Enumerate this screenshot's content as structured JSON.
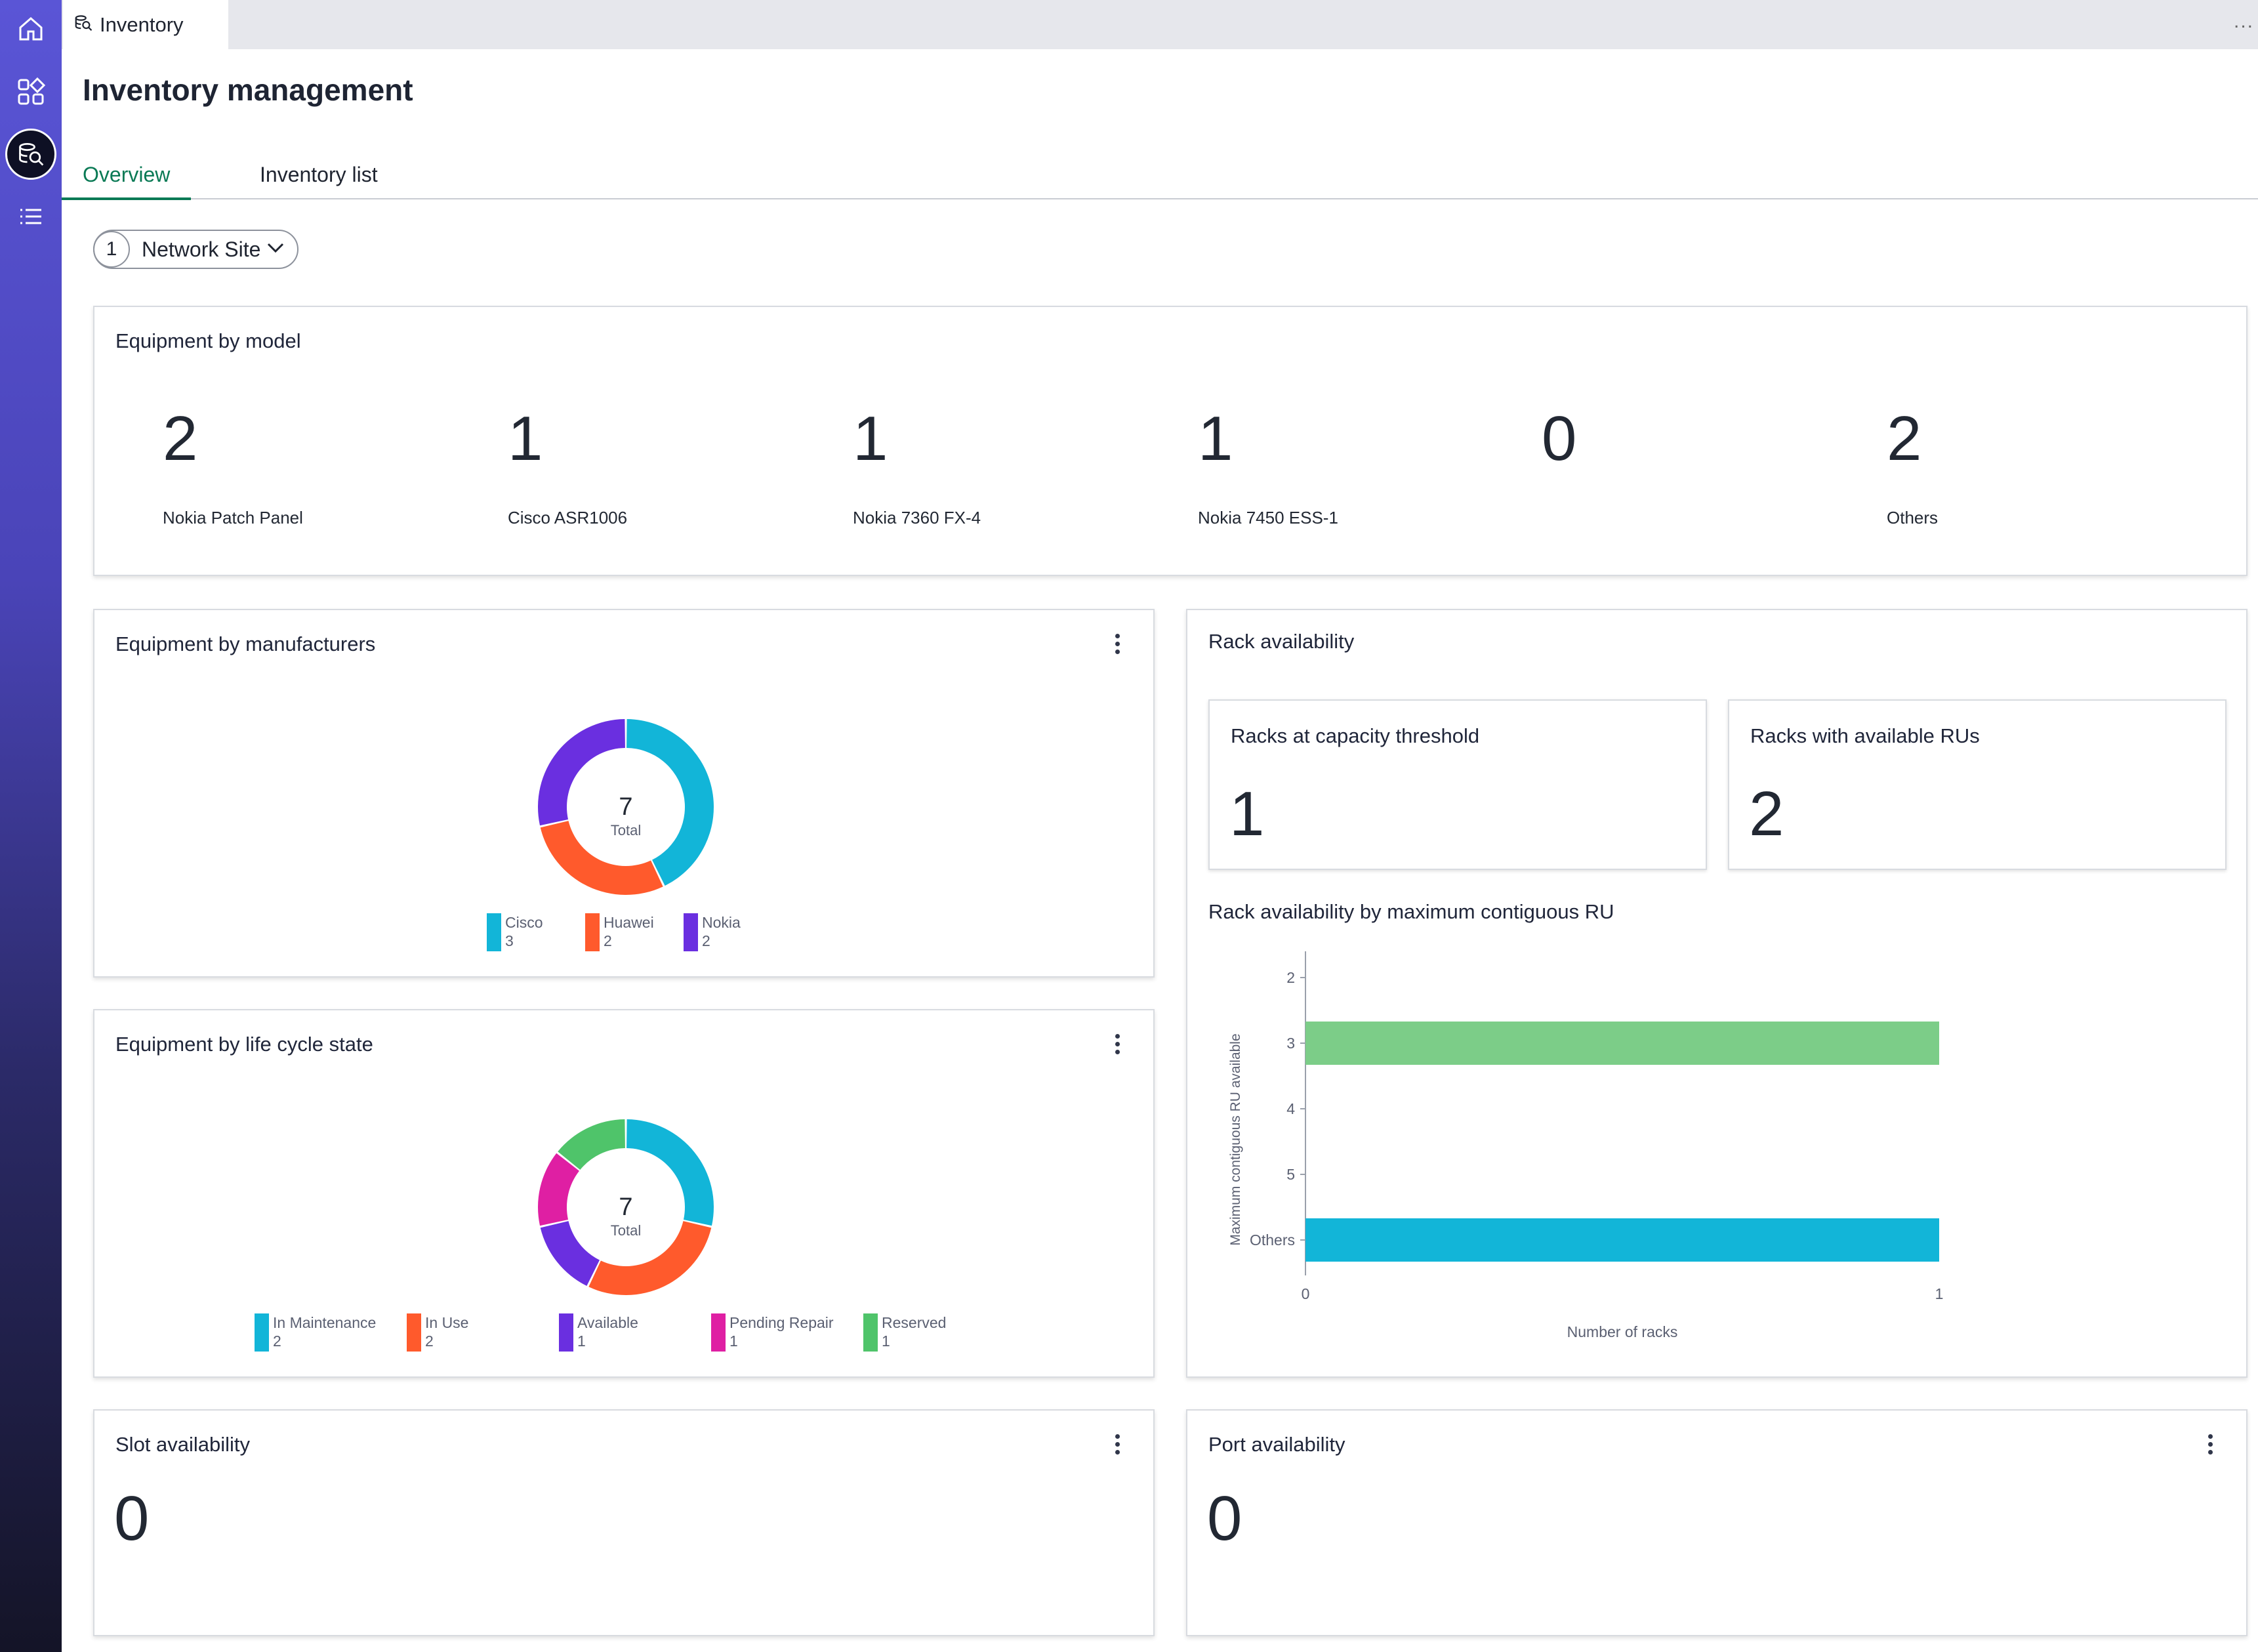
{
  "sidebar": {
    "items": [
      {
        "icon": "home-icon"
      },
      {
        "icon": "apps-icon"
      },
      {
        "icon": "inventory-search-icon",
        "active": true
      },
      {
        "icon": "list-icon"
      }
    ]
  },
  "topbar": {
    "tab_label": "Inventory",
    "tab_icon": "inventory-search-icon",
    "more": "..."
  },
  "header": {
    "title": "Inventory management"
  },
  "tabs": [
    {
      "label": "Overview",
      "active": true
    },
    {
      "label": "Inventory list"
    }
  ],
  "filter": {
    "count": "1",
    "label": "Network Site"
  },
  "equipment_by_model": {
    "title": "Equipment by model",
    "items": [
      {
        "value": "2",
        "label": "Nokia Patch Panel"
      },
      {
        "value": "1",
        "label": "Cisco ASR1006"
      },
      {
        "value": "1",
        "label": "Nokia 7360 FX-4"
      },
      {
        "value": "1",
        "label": "Nokia 7450 ESS-1"
      },
      {
        "value": "0",
        "label": ""
      },
      {
        "value": "2",
        "label": "Others"
      }
    ]
  },
  "manufacturers": {
    "title": "Equipment by manufacturers",
    "total": "7",
    "total_label": "Total",
    "legend": [
      {
        "name": "Cisco",
        "value": "3",
        "color": "#12b5d8"
      },
      {
        "name": "Huawei",
        "value": "2",
        "color": "#ff5a2c"
      },
      {
        "name": "Nokia",
        "value": "2",
        "color": "#6a2fe0"
      }
    ]
  },
  "lifecycle": {
    "title": "Equipment by life cycle state",
    "total": "7",
    "total_label": "Total",
    "legend": [
      {
        "name": "In Maintenance",
        "value": "2",
        "color": "#12b5d8"
      },
      {
        "name": "In Use",
        "value": "2",
        "color": "#ff5a2c"
      },
      {
        "name": "Available",
        "value": "1",
        "color": "#6a2fe0"
      },
      {
        "name": "Pending Repair",
        "value": "1",
        "color": "#df1fa3"
      },
      {
        "name": "Reserved",
        "value": "1",
        "color": "#4fc46a"
      }
    ]
  },
  "rack": {
    "title": "Rack availability",
    "capacity": {
      "label": "Racks at capacity threshold",
      "value": "1"
    },
    "available": {
      "label": "Racks with available RUs",
      "value": "2"
    },
    "chart_title": "Rack availability by maximum contiguous RU"
  },
  "slot": {
    "title": "Slot availability",
    "value": "0"
  },
  "port": {
    "title": "Port availability",
    "value": "0"
  },
  "chart_data": [
    {
      "type": "pie",
      "title": "Equipment by manufacturers",
      "categories": [
        "Cisco",
        "Huawei",
        "Nokia"
      ],
      "values": [
        3,
        2,
        2
      ],
      "colors": [
        "#12b5d8",
        "#ff5a2c",
        "#6a2fe0"
      ]
    },
    {
      "type": "pie",
      "title": "Equipment by life cycle state",
      "categories": [
        "In Maintenance",
        "In Use",
        "Available",
        "Pending Repair",
        "Reserved"
      ],
      "values": [
        2,
        2,
        1,
        1,
        1
      ],
      "colors": [
        "#12b5d8",
        "#ff5a2c",
        "#6a2fe0",
        "#df1fa3",
        "#4fc46a"
      ]
    },
    {
      "type": "bar",
      "orientation": "horizontal",
      "title": "Rack availability by maximum contiguous RU",
      "categories": [
        "2",
        "3",
        "4",
        "5",
        "Others"
      ],
      "values": [
        0,
        1,
        0,
        0,
        1
      ],
      "colors": [
        "#7ccd88",
        "#7ccd88",
        "#7ccd88",
        "#7ccd88",
        "#12b5d8"
      ],
      "xlabel": "Number of racks",
      "ylabel": "Maximum contiguous RU available",
      "xlim": [
        0,
        1
      ],
      "xticks": [
        "0",
        "1"
      ]
    }
  ]
}
